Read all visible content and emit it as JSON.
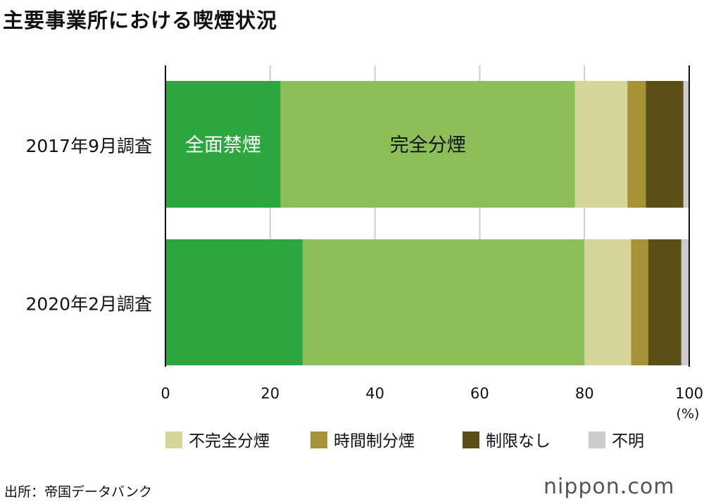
{
  "title": "主要事業所における喫煙状況",
  "source": "出所：帝国データバンク",
  "logo": {
    "text_before": "nippon",
    "dot": ".",
    "text_after": "com"
  },
  "chart_data": {
    "type": "bar",
    "orientation": "horizontal",
    "stacked": true,
    "title": "主要事業所における喫煙状況",
    "categories": [
      "2017年9月調査",
      "2020年2月調査"
    ],
    "series": [
      {
        "name": "全面禁煙",
        "color": "#2ea63f",
        "values": [
          22.0,
          26.2
        ]
      },
      {
        "name": "完全分煙",
        "color": "#8cbf58",
        "values": [
          56.2,
          53.8
        ]
      },
      {
        "name": "不完全分煙",
        "color": "#d6d59a",
        "values": [
          10.0,
          8.9
        ]
      },
      {
        "name": "時間制分煙",
        "color": "#a79237",
        "values": [
          3.5,
          3.3
        ]
      },
      {
        "name": "制限なし",
        "color": "#5b4f18",
        "values": [
          7.2,
          6.3
        ]
      },
      {
        "name": "不明",
        "color": "#cccccc",
        "values": [
          1.1,
          1.5
        ]
      }
    ],
    "inline_labels": [
      {
        "series": "全面禁煙",
        "text": "全面禁煙",
        "color": "#ffffff"
      },
      {
        "series": "完全分煙",
        "text": "完全分煙",
        "color": "#111111"
      }
    ],
    "legend_series": [
      "不完全分煙",
      "時間制分煙",
      "制限なし",
      "不明"
    ],
    "legend_placement": "bottom",
    "xlim": [
      0,
      100
    ],
    "xticks": [
      "0",
      "20",
      "40",
      "60",
      "80",
      "100"
    ],
    "xunit": "(%)",
    "grid": true
  }
}
